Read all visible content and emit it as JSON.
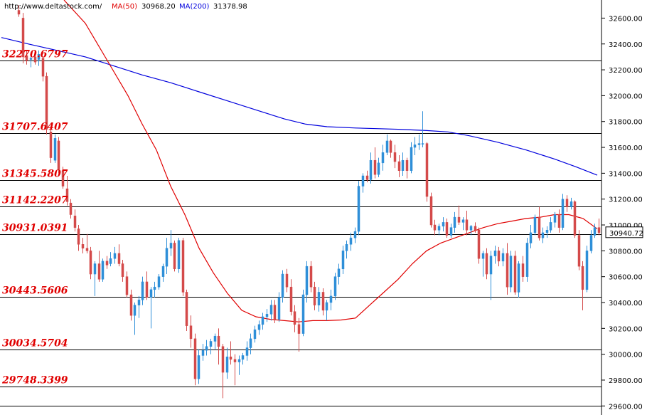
{
  "header": {
    "source": "http://www.deltastock.com/",
    "ma50_label": "MA(50)",
    "ma50_value": "30968.20",
    "ma200_label": "MA(200)",
    "ma200_value": "31378.98"
  },
  "colors": {
    "up": "#2f8fd8",
    "down": "#d44a4a",
    "ma50": "#e00000",
    "ma200": "#0000dd",
    "level": "#e00000",
    "grid": "#000000"
  },
  "chart_data": {
    "type": "candlestick",
    "ylim": [
      29530,
      32740
    ],
    "yticks": [
      "32600.00",
      "32400.00",
      "32200.00",
      "32000.00",
      "31800.00",
      "31600.00",
      "31400.00",
      "31200.00",
      "31000.00",
      "30800.00",
      "30600.00",
      "30400.00",
      "30200.00",
      "30000.00",
      "29800.00",
      "29600.00"
    ],
    "last_price": "30940.72",
    "levels": [
      {
        "value": 32270.6797,
        "label": "32270.6797"
      },
      {
        "value": 31707.6407,
        "label": "31707.6407"
      },
      {
        "value": 31345.5807,
        "label": "31345.5807"
      },
      {
        "value": 31142.2207,
        "label": "31142.2207"
      },
      {
        "value": 30931.0391,
        "label": "30931.0391"
      },
      {
        "value": 30443.5606,
        "label": "30443.5606"
      },
      {
        "value": 30034.5704,
        "label": "30034.5704"
      },
      {
        "value": 29748.3399,
        "label": "29748.3399"
      }
    ],
    "candles": [
      {
        "o": 32660,
        "h": 32700,
        "l": 32610,
        "c": 32630
      },
      {
        "o": 32600,
        "h": 32640,
        "l": 32250,
        "c": 32300
      },
      {
        "o": 32310,
        "h": 32350,
        "l": 32240,
        "c": 32270
      },
      {
        "o": 32280,
        "h": 32330,
        "l": 32220,
        "c": 32290
      },
      {
        "o": 32300,
        "h": 32320,
        "l": 32240,
        "c": 32260
      },
      {
        "o": 32280,
        "h": 32350,
        "l": 32230,
        "c": 32320
      },
      {
        "o": 32290,
        "h": 32300,
        "l": 32110,
        "c": 32150
      },
      {
        "o": 32150,
        "h": 32180,
        "l": 31700,
        "c": 31740
      },
      {
        "o": 31720,
        "h": 31750,
        "l": 31480,
        "c": 31520
      },
      {
        "o": 31500,
        "h": 31700,
        "l": 31480,
        "c": 31670
      },
      {
        "o": 31650,
        "h": 31680,
        "l": 31400,
        "c": 31430
      },
      {
        "o": 31420,
        "h": 31450,
        "l": 31280,
        "c": 31300
      },
      {
        "o": 31280,
        "h": 31380,
        "l": 31150,
        "c": 31180
      },
      {
        "o": 31170,
        "h": 31200,
        "l": 31050,
        "c": 31080
      },
      {
        "o": 31070,
        "h": 31120,
        "l": 30950,
        "c": 30980
      },
      {
        "o": 30970,
        "h": 31000,
        "l": 30800,
        "c": 30850
      },
      {
        "o": 30850,
        "h": 30900,
        "l": 30780,
        "c": 30820
      },
      {
        "o": 30820,
        "h": 30930,
        "l": 30780,
        "c": 30800
      },
      {
        "o": 30800,
        "h": 30830,
        "l": 30580,
        "c": 30620
      },
      {
        "o": 30620,
        "h": 30720,
        "l": 30450,
        "c": 30700
      },
      {
        "o": 30700,
        "h": 30800,
        "l": 30560,
        "c": 30580
      },
      {
        "o": 30580,
        "h": 30740,
        "l": 30560,
        "c": 30720
      },
      {
        "o": 30720,
        "h": 30760,
        "l": 30660,
        "c": 30690
      },
      {
        "o": 30700,
        "h": 30790,
        "l": 30680,
        "c": 30740
      },
      {
        "o": 30740,
        "h": 30830,
        "l": 30700,
        "c": 30780
      },
      {
        "o": 30780,
        "h": 30850,
        "l": 30680,
        "c": 30700
      },
      {
        "o": 30700,
        "h": 30730,
        "l": 30560,
        "c": 30600
      },
      {
        "o": 30600,
        "h": 30640,
        "l": 30440,
        "c": 30460
      },
      {
        "o": 30460,
        "h": 30500,
        "l": 30260,
        "c": 30300
      },
      {
        "o": 30300,
        "h": 30400,
        "l": 30150,
        "c": 30380
      },
      {
        "o": 30380,
        "h": 30450,
        "l": 30280,
        "c": 30420
      },
      {
        "o": 30420,
        "h": 30600,
        "l": 30380,
        "c": 30560
      },
      {
        "o": 30560,
        "h": 30640,
        "l": 30420,
        "c": 30440
      },
      {
        "o": 30440,
        "h": 30520,
        "l": 30200,
        "c": 30500
      },
      {
        "o": 30500,
        "h": 30560,
        "l": 30440,
        "c": 30520
      },
      {
        "o": 30520,
        "h": 30620,
        "l": 30500,
        "c": 30600
      },
      {
        "o": 30600,
        "h": 30700,
        "l": 30560,
        "c": 30680
      },
      {
        "o": 30680,
        "h": 30900,
        "l": 30620,
        "c": 30820
      },
      {
        "o": 30820,
        "h": 30960,
        "l": 30760,
        "c": 30860
      },
      {
        "o": 30860,
        "h": 30880,
        "l": 30640,
        "c": 30660
      },
      {
        "o": 30660,
        "h": 30900,
        "l": 30630,
        "c": 30880
      },
      {
        "o": 30880,
        "h": 30900,
        "l": 30450,
        "c": 30480
      },
      {
        "o": 30480,
        "h": 30500,
        "l": 30180,
        "c": 30220
      },
      {
        "o": 30220,
        "h": 30300,
        "l": 30050,
        "c": 30120
      },
      {
        "o": 30120,
        "h": 30160,
        "l": 29760,
        "c": 29810
      },
      {
        "o": 29810,
        "h": 30040,
        "l": 29770,
        "c": 29990
      },
      {
        "o": 29990,
        "h": 30080,
        "l": 29950,
        "c": 30030
      },
      {
        "o": 30030,
        "h": 30110,
        "l": 29990,
        "c": 30060
      },
      {
        "o": 30060,
        "h": 30120,
        "l": 30000,
        "c": 30100
      },
      {
        "o": 30100,
        "h": 30160,
        "l": 30040,
        "c": 30140
      },
      {
        "o": 30140,
        "h": 30200,
        "l": 29920,
        "c": 30060
      },
      {
        "o": 30060,
        "h": 30080,
        "l": 29660,
        "c": 29860
      },
      {
        "o": 29860,
        "h": 30050,
        "l": 29810,
        "c": 29980
      },
      {
        "o": 29980,
        "h": 30100,
        "l": 29920,
        "c": 29960
      },
      {
        "o": 29960,
        "h": 30000,
        "l": 29760,
        "c": 29940
      },
      {
        "o": 29940,
        "h": 29990,
        "l": 29840,
        "c": 29960
      },
      {
        "o": 29960,
        "h": 30010,
        "l": 29920,
        "c": 29990
      },
      {
        "o": 29990,
        "h": 30100,
        "l": 29950,
        "c": 30050
      },
      {
        "o": 30050,
        "h": 30160,
        "l": 30000,
        "c": 30120
      },
      {
        "o": 30120,
        "h": 30220,
        "l": 30090,
        "c": 30190
      },
      {
        "o": 30190,
        "h": 30260,
        "l": 30150,
        "c": 30230
      },
      {
        "o": 30230,
        "h": 30320,
        "l": 30190,
        "c": 30290
      },
      {
        "o": 30290,
        "h": 30350,
        "l": 30250,
        "c": 30310
      },
      {
        "o": 30310,
        "h": 30420,
        "l": 30260,
        "c": 30380
      },
      {
        "o": 30380,
        "h": 30420,
        "l": 30240,
        "c": 30270
      },
      {
        "o": 30270,
        "h": 30480,
        "l": 30250,
        "c": 30440
      },
      {
        "o": 30440,
        "h": 30650,
        "l": 30400,
        "c": 30620
      },
      {
        "o": 30620,
        "h": 30660,
        "l": 30480,
        "c": 30520
      },
      {
        "o": 30520,
        "h": 30580,
        "l": 30300,
        "c": 30330
      },
      {
        "o": 30330,
        "h": 30380,
        "l": 30170,
        "c": 30230
      },
      {
        "o": 30230,
        "h": 30280,
        "l": 30020,
        "c": 30160
      },
      {
        "o": 30160,
        "h": 30500,
        "l": 30140,
        "c": 30460
      },
      {
        "o": 30460,
        "h": 30720,
        "l": 30400,
        "c": 30680
      },
      {
        "o": 30680,
        "h": 30720,
        "l": 30480,
        "c": 30520
      },
      {
        "o": 30520,
        "h": 30560,
        "l": 30340,
        "c": 30380
      },
      {
        "o": 30380,
        "h": 30520,
        "l": 30330,
        "c": 30480
      },
      {
        "o": 30480,
        "h": 30510,
        "l": 30300,
        "c": 30340
      },
      {
        "o": 30340,
        "h": 30420,
        "l": 30260,
        "c": 30400
      },
      {
        "o": 30400,
        "h": 30500,
        "l": 30340,
        "c": 30450
      },
      {
        "o": 30450,
        "h": 30630,
        "l": 30420,
        "c": 30600
      },
      {
        "o": 30600,
        "h": 30700,
        "l": 30540,
        "c": 30660
      },
      {
        "o": 30660,
        "h": 30840,
        "l": 30620,
        "c": 30800
      },
      {
        "o": 30800,
        "h": 30880,
        "l": 30740,
        "c": 30850
      },
      {
        "o": 30850,
        "h": 30940,
        "l": 30800,
        "c": 30900
      },
      {
        "o": 30900,
        "h": 30980,
        "l": 30860,
        "c": 30950
      },
      {
        "o": 30950,
        "h": 31340,
        "l": 30920,
        "c": 31300
      },
      {
        "o": 31300,
        "h": 31400,
        "l": 31250,
        "c": 31380
      },
      {
        "o": 31380,
        "h": 31420,
        "l": 31330,
        "c": 31350
      },
      {
        "o": 31350,
        "h": 31560,
        "l": 31320,
        "c": 31500
      },
      {
        "o": 31500,
        "h": 31600,
        "l": 31360,
        "c": 31390
      },
      {
        "o": 31390,
        "h": 31520,
        "l": 31370,
        "c": 31480
      },
      {
        "o": 31480,
        "h": 31620,
        "l": 31420,
        "c": 31560
      },
      {
        "o": 31560,
        "h": 31700,
        "l": 31540,
        "c": 31650
      },
      {
        "o": 31650,
        "h": 31660,
        "l": 31520,
        "c": 31560
      },
      {
        "o": 31560,
        "h": 31620,
        "l": 31440,
        "c": 31490
      },
      {
        "o": 31490,
        "h": 31540,
        "l": 31370,
        "c": 31420
      },
      {
        "o": 31420,
        "h": 31560,
        "l": 31380,
        "c": 31500
      },
      {
        "o": 31500,
        "h": 31520,
        "l": 31360,
        "c": 31420
      },
      {
        "o": 31420,
        "h": 31640,
        "l": 31400,
        "c": 31600
      },
      {
        "o": 31600,
        "h": 31680,
        "l": 31540,
        "c": 31620
      },
      {
        "o": 31620,
        "h": 31700,
        "l": 31580,
        "c": 31630
      },
      {
        "o": 31630,
        "h": 31880,
        "l": 31600,
        "c": 31630
      },
      {
        "o": 31630,
        "h": 31640,
        "l": 31180,
        "c": 31220
      },
      {
        "o": 31220,
        "h": 31250,
        "l": 30980,
        "c": 31000
      },
      {
        "o": 31000,
        "h": 31040,
        "l": 30920,
        "c": 30960
      },
      {
        "o": 30960,
        "h": 31010,
        "l": 30920,
        "c": 30990
      },
      {
        "o": 30990,
        "h": 31060,
        "l": 30950,
        "c": 31020
      },
      {
        "o": 31020,
        "h": 31050,
        "l": 30900,
        "c": 30920
      },
      {
        "o": 30920,
        "h": 31010,
        "l": 30900,
        "c": 30980
      },
      {
        "o": 30980,
        "h": 31100,
        "l": 30940,
        "c": 31060
      },
      {
        "o": 31060,
        "h": 31150,
        "l": 31000,
        "c": 31020
      },
      {
        "o": 31020,
        "h": 31060,
        "l": 30960,
        "c": 31040
      },
      {
        "o": 31040,
        "h": 31110,
        "l": 30920,
        "c": 30960
      },
      {
        "o": 30960,
        "h": 31000,
        "l": 30920,
        "c": 30990
      },
      {
        "o": 30990,
        "h": 31020,
        "l": 30940,
        "c": 30960
      },
      {
        "o": 30960,
        "h": 30980,
        "l": 30700,
        "c": 30740
      },
      {
        "o": 30740,
        "h": 30800,
        "l": 30600,
        "c": 30780
      },
      {
        "o": 30780,
        "h": 30820,
        "l": 30580,
        "c": 30620
      },
      {
        "o": 30620,
        "h": 30800,
        "l": 30420,
        "c": 30760
      },
      {
        "o": 30760,
        "h": 30840,
        "l": 30700,
        "c": 30800
      },
      {
        "o": 30800,
        "h": 30830,
        "l": 30680,
        "c": 30720
      },
      {
        "o": 30720,
        "h": 30820,
        "l": 30680,
        "c": 30780
      },
      {
        "o": 30780,
        "h": 30860,
        "l": 30460,
        "c": 30520
      },
      {
        "o": 30520,
        "h": 30800,
        "l": 30480,
        "c": 30760
      },
      {
        "o": 30760,
        "h": 30800,
        "l": 30460,
        "c": 30480
      },
      {
        "o": 30480,
        "h": 30720,
        "l": 30440,
        "c": 30700
      },
      {
        "o": 30700,
        "h": 30760,
        "l": 30560,
        "c": 30600
      },
      {
        "o": 30600,
        "h": 30900,
        "l": 30560,
        "c": 30860
      },
      {
        "o": 30860,
        "h": 31000,
        "l": 30820,
        "c": 30940
      },
      {
        "o": 30940,
        "h": 31080,
        "l": 30920,
        "c": 31060
      },
      {
        "o": 31060,
        "h": 31140,
        "l": 30880,
        "c": 30900
      },
      {
        "o": 30900,
        "h": 30980,
        "l": 30860,
        "c": 30940
      },
      {
        "o": 30940,
        "h": 30990,
        "l": 30900,
        "c": 30960
      },
      {
        "o": 30960,
        "h": 31060,
        "l": 30940,
        "c": 31020
      },
      {
        "o": 31020,
        "h": 31100,
        "l": 30980,
        "c": 31080
      },
      {
        "o": 31080,
        "h": 31120,
        "l": 30940,
        "c": 30980
      },
      {
        "o": 30980,
        "h": 31240,
        "l": 30960,
        "c": 31200
      },
      {
        "o": 31200,
        "h": 31230,
        "l": 31100,
        "c": 31140
      },
      {
        "o": 31140,
        "h": 31210,
        "l": 31120,
        "c": 31180
      },
      {
        "o": 31180,
        "h": 31190,
        "l": 30900,
        "c": 30920
      },
      {
        "o": 30920,
        "h": 30960,
        "l": 30650,
        "c": 30680
      },
      {
        "o": 30680,
        "h": 30720,
        "l": 30340,
        "c": 30500
      },
      {
        "o": 30500,
        "h": 30840,
        "l": 30480,
        "c": 30800
      },
      {
        "o": 30800,
        "h": 30960,
        "l": 30780,
        "c": 30920
      },
      {
        "o": 30920,
        "h": 31010,
        "l": 30900,
        "c": 30980
      },
      {
        "o": 30980,
        "h": 31050,
        "l": 30920,
        "c": 30940
      }
    ],
    "ma50": [
      [
        90,
        32740
      ],
      [
        120,
        32560
      ],
      [
        150,
        32280
      ],
      [
        180,
        32000
      ],
      [
        200,
        31780
      ],
      [
        220,
        31580
      ],
      [
        240,
        31300
      ],
      [
        260,
        31080
      ],
      [
        280,
        30820
      ],
      [
        300,
        30630
      ],
      [
        320,
        30470
      ],
      [
        340,
        30340
      ],
      [
        360,
        30290
      ],
      [
        380,
        30270
      ],
      [
        400,
        30260
      ],
      [
        420,
        30250
      ],
      [
        440,
        30260
      ],
      [
        460,
        30260
      ],
      [
        480,
        30265
      ],
      [
        500,
        30280
      ],
      [
        520,
        30380
      ],
      [
        540,
        30480
      ],
      [
        560,
        30580
      ],
      [
        580,
        30700
      ],
      [
        600,
        30800
      ],
      [
        620,
        30860
      ],
      [
        640,
        30900
      ],
      [
        660,
        30940
      ],
      [
        680,
        30980
      ],
      [
        700,
        31010
      ],
      [
        720,
        31030
      ],
      [
        740,
        31050
      ],
      [
        760,
        31060
      ],
      [
        780,
        31080
      ],
      [
        800,
        31080
      ],
      [
        820,
        31050
      ],
      [
        840,
        30970
      ]
    ],
    "ma200": [
      [
        2,
        32450
      ],
      [
        40,
        32400
      ],
      [
        80,
        32350
      ],
      [
        120,
        32300
      ],
      [
        160,
        32230
      ],
      [
        200,
        32160
      ],
      [
        240,
        32100
      ],
      [
        280,
        32030
      ],
      [
        320,
        31960
      ],
      [
        360,
        31890
      ],
      [
        400,
        31820
      ],
      [
        430,
        31780
      ],
      [
        460,
        31760
      ],
      [
        500,
        31750
      ],
      [
        530,
        31745
      ],
      [
        560,
        31740
      ],
      [
        600,
        31730
      ],
      [
        630,
        31720
      ],
      [
        660,
        31690
      ],
      [
        700,
        31640
      ],
      [
        740,
        31580
      ],
      [
        780,
        31510
      ],
      [
        810,
        31450
      ],
      [
        840,
        31385
      ]
    ]
  }
}
